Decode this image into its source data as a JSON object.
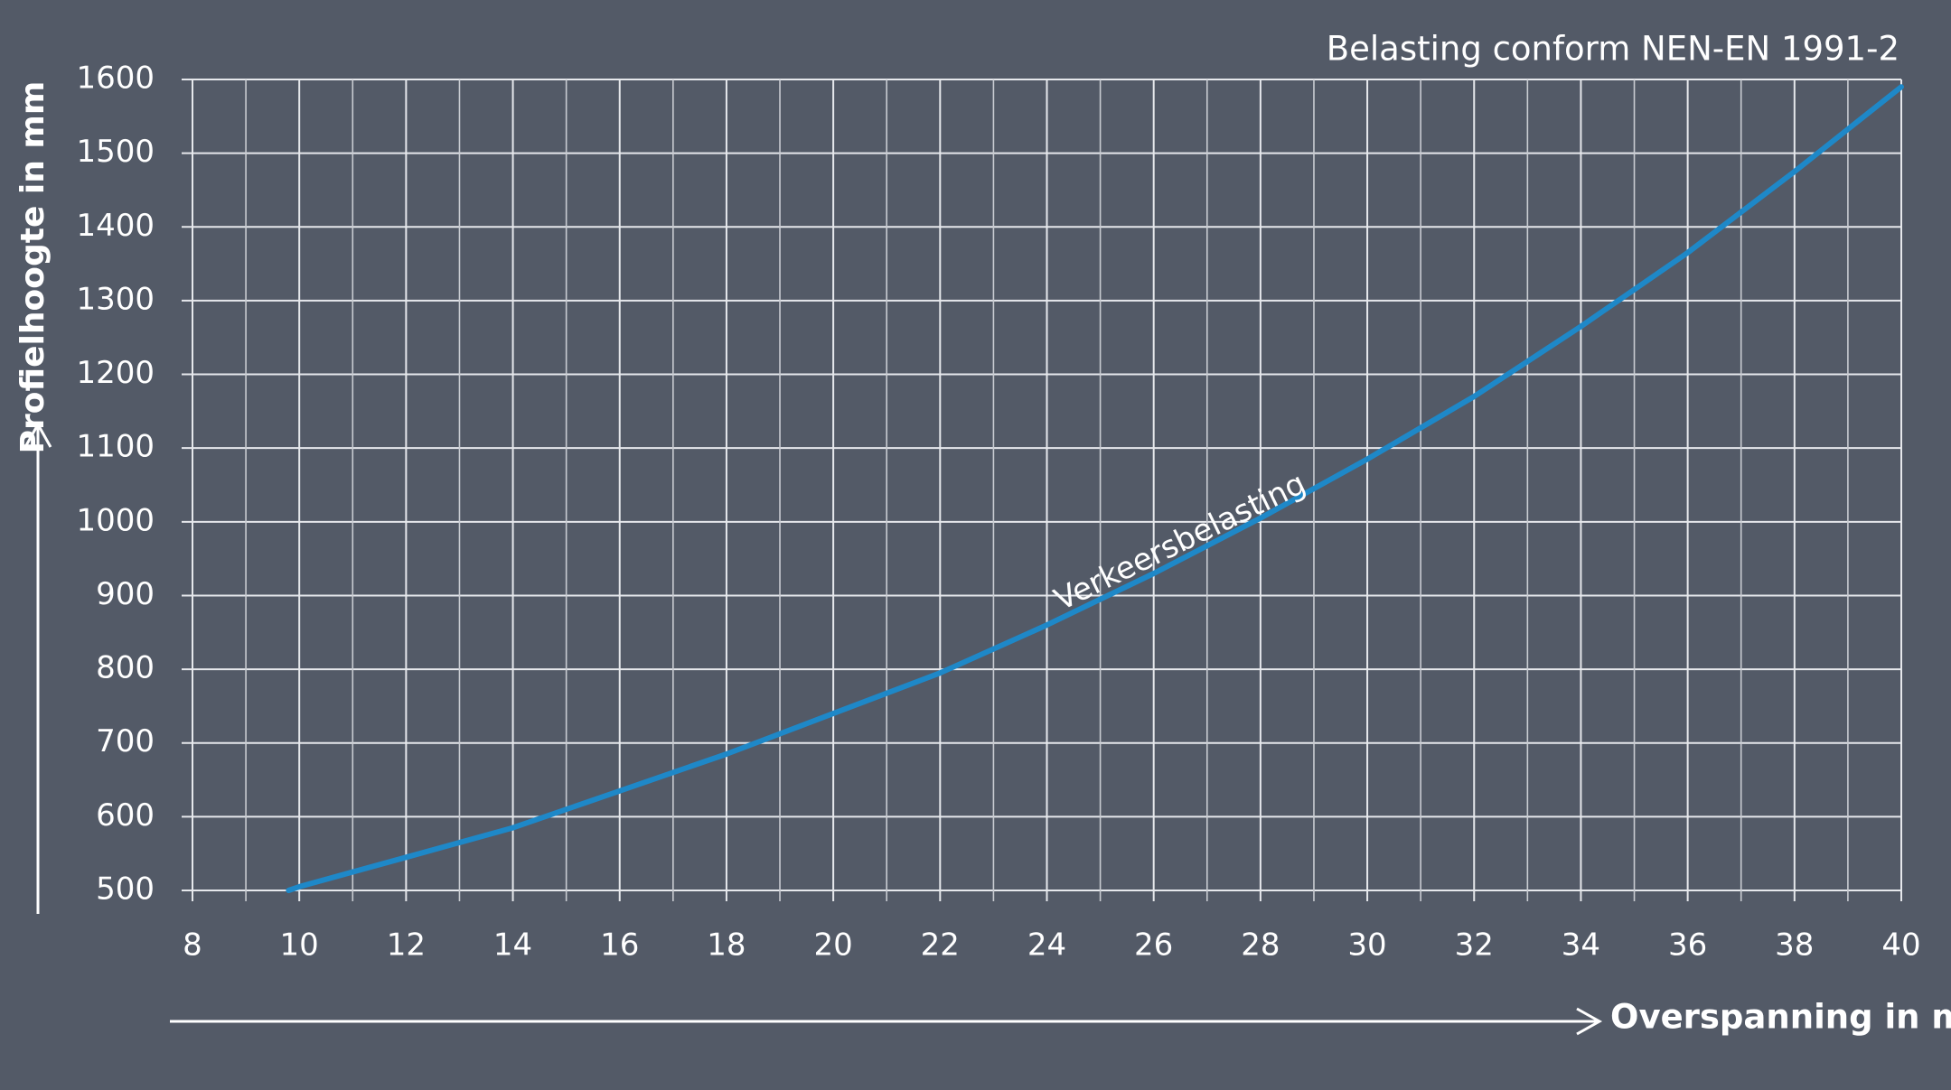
{
  "chart_data": {
    "type": "line",
    "title": "Belasting conform NEN-EN 1991-2",
    "x_label": "Overspanning in m",
    "y_label": "Profielhoogte in mm",
    "annotation": "Verkeersbelasting",
    "x": [
      9.8,
      10,
      12,
      14,
      16,
      18,
      20,
      22,
      24,
      26,
      28,
      30,
      32,
      34,
      36,
      38,
      40
    ],
    "values": [
      500,
      505,
      545,
      585,
      635,
      685,
      740,
      795,
      860,
      930,
      1005,
      1085,
      1170,
      1265,
      1365,
      1475,
      1590
    ],
    "color": "#1e88c8",
    "xlim": [
      8,
      40
    ],
    "xticks": [
      8,
      10,
      12,
      14,
      16,
      18,
      20,
      22,
      24,
      26,
      28,
      30,
      32,
      34,
      36,
      38,
      40
    ],
    "ylim": [
      500,
      1600
    ],
    "yticks": [
      500,
      600,
      700,
      800,
      900,
      1000,
      1100,
      1200,
      1300,
      1400,
      1500,
      1600
    ],
    "grid": true
  }
}
